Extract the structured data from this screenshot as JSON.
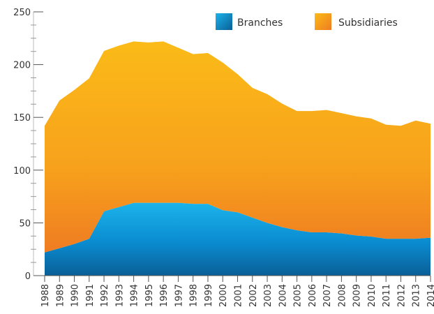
{
  "chart_data": {
    "type": "area",
    "stacked": true,
    "title": "",
    "xlabel": "",
    "ylabel": "",
    "ylim": [
      0,
      250
    ],
    "yticks": [
      "0",
      "50",
      "100",
      "150",
      "200",
      "250"
    ],
    "grid": false,
    "legend_position": "top-right",
    "categories": [
      "1988",
      "1989",
      "1990",
      "1991",
      "1992",
      "1993",
      "1994",
      "1995",
      "1996",
      "1997",
      "1998",
      "1999",
      "2000",
      "2001",
      "2002",
      "2003",
      "2004",
      "2005",
      "2006",
      "2007",
      "2008",
      "2009",
      "2010",
      "2011",
      "2012",
      "2013",
      "2014"
    ],
    "series": [
      {
        "name": "Branches",
        "color": "#0f7fc0",
        "values": [
          22,
          26,
          30,
          35,
          61,
          65,
          69,
          69,
          69,
          69,
          68,
          68,
          62,
          60,
          55,
          50,
          46,
          43,
          41,
          41,
          40,
          38,
          37,
          35,
          35,
          35,
          36
        ]
      },
      {
        "name": "Subsidiaries",
        "color": "#f5a31c",
        "values": [
          120,
          140,
          146,
          152,
          152,
          153,
          153,
          152,
          153,
          147,
          142,
          143,
          140,
          131,
          123,
          122,
          117,
          113,
          115,
          116,
          114,
          113,
          112,
          108,
          107,
          112,
          108
        ]
      }
    ]
  }
}
